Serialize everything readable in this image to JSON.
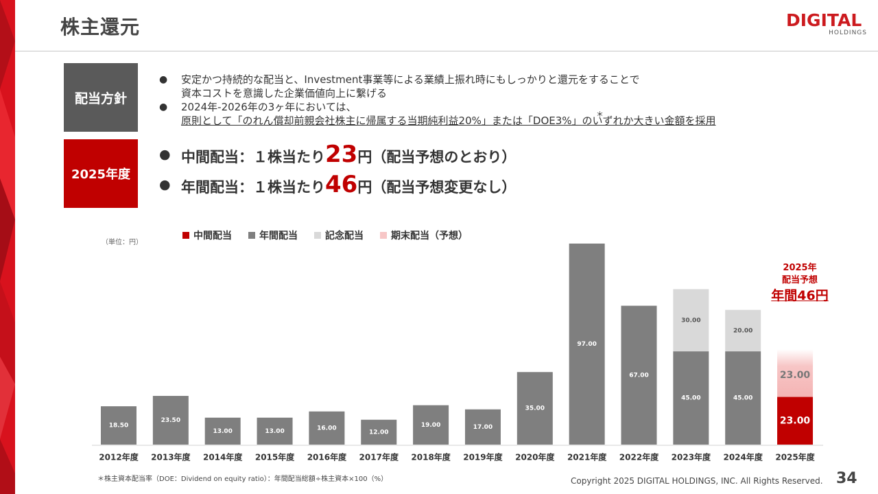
{
  "header": {
    "title": "株主還元",
    "logo_main": "DIGITAL",
    "logo_sub": "HOLDINGS"
  },
  "policy": {
    "label": "配当方針",
    "bullet1_line1": "安定かつ持続的な配当と、Investment事業等による業績上振れ時にもしっかりと還元をすることで",
    "bullet1_line2": "資本コストを意識した企業価値向上に繋げる",
    "bullet2_line1": "2024年-2026年の3ヶ年においては、",
    "bullet2_line2": "原則として「のれん償却前親会社株主に帰属する当期純利益20%」または「DOE3%」のいずれか大きい金額を採用",
    "star_mark": "＊"
  },
  "fy2025": {
    "label": "2025年度",
    "interim_prefix": "中間配当：１株当たり",
    "interim_value": "23",
    "interim_suffix": "円（配当予想のとおり）",
    "annual_prefix": "年間配当：１株当たり",
    "annual_value": "46",
    "annual_suffix": "円（配当予想変更なし）"
  },
  "chart_data": {
    "type": "bar",
    "unit_label": "（単位：円）",
    "legend": [
      {
        "name": "中間配当",
        "color": "#c00000"
      },
      {
        "name": "年間配当",
        "color": "#7f7f7f"
      },
      {
        "name": "記念配当",
        "color": "#d9d9d9"
      },
      {
        "name": "期末配当（予想）",
        "color": "#f7c6c6"
      }
    ],
    "categories": [
      "2012年度",
      "2013年度",
      "2014年度",
      "2015年度",
      "2016年度",
      "2017年度",
      "2018年度",
      "2019年度",
      "2020年度",
      "2021年度",
      "2022年度",
      "2023年度",
      "2024年度",
      "2025年度"
    ],
    "series": [
      {
        "name": "年間配当",
        "values": [
          18.5,
          23.5,
          13.0,
          13.0,
          16.0,
          12.0,
          19.0,
          17.0,
          35.0,
          97.0,
          67.0,
          45.0,
          45.0,
          null
        ]
      },
      {
        "name": "記念配当",
        "values": [
          null,
          null,
          null,
          null,
          null,
          null,
          null,
          null,
          null,
          null,
          null,
          30.0,
          20.0,
          null
        ]
      },
      {
        "name": "中間配当",
        "values": [
          null,
          null,
          null,
          null,
          null,
          null,
          null,
          null,
          null,
          null,
          null,
          null,
          null,
          23.0
        ]
      },
      {
        "name": "期末配当（予想）",
        "values": [
          null,
          null,
          null,
          null,
          null,
          null,
          null,
          null,
          null,
          null,
          null,
          null,
          null,
          23.0
        ]
      }
    ],
    "value_labels": [
      [
        "18.50"
      ],
      [
        "23.50"
      ],
      [
        "13.00"
      ],
      [
        "13.00"
      ],
      [
        "16.00"
      ],
      [
        "12.00"
      ],
      [
        "19.00"
      ],
      [
        "17.00"
      ],
      [
        "35.00"
      ],
      [
        "97.00"
      ],
      [
        "67.00"
      ],
      [
        "45.00",
        "30.00"
      ],
      [
        "45.00",
        "20.00"
      ],
      [
        "23.00",
        "23.00"
      ]
    ],
    "ylim": [
      0,
      97
    ],
    "callout": {
      "line1": "2025年",
      "line2": "配当予想",
      "line3": "年間46円"
    }
  },
  "footer": {
    "footnote": "＊株主資本配当率（DOE：Dividend on equity ratio）：年間配当総額÷株主資本×100（%）",
    "copyright": "Copyright 2025 DIGITAL HOLDINGS, INC. All Rights Reserved.",
    "page_number": "34"
  }
}
